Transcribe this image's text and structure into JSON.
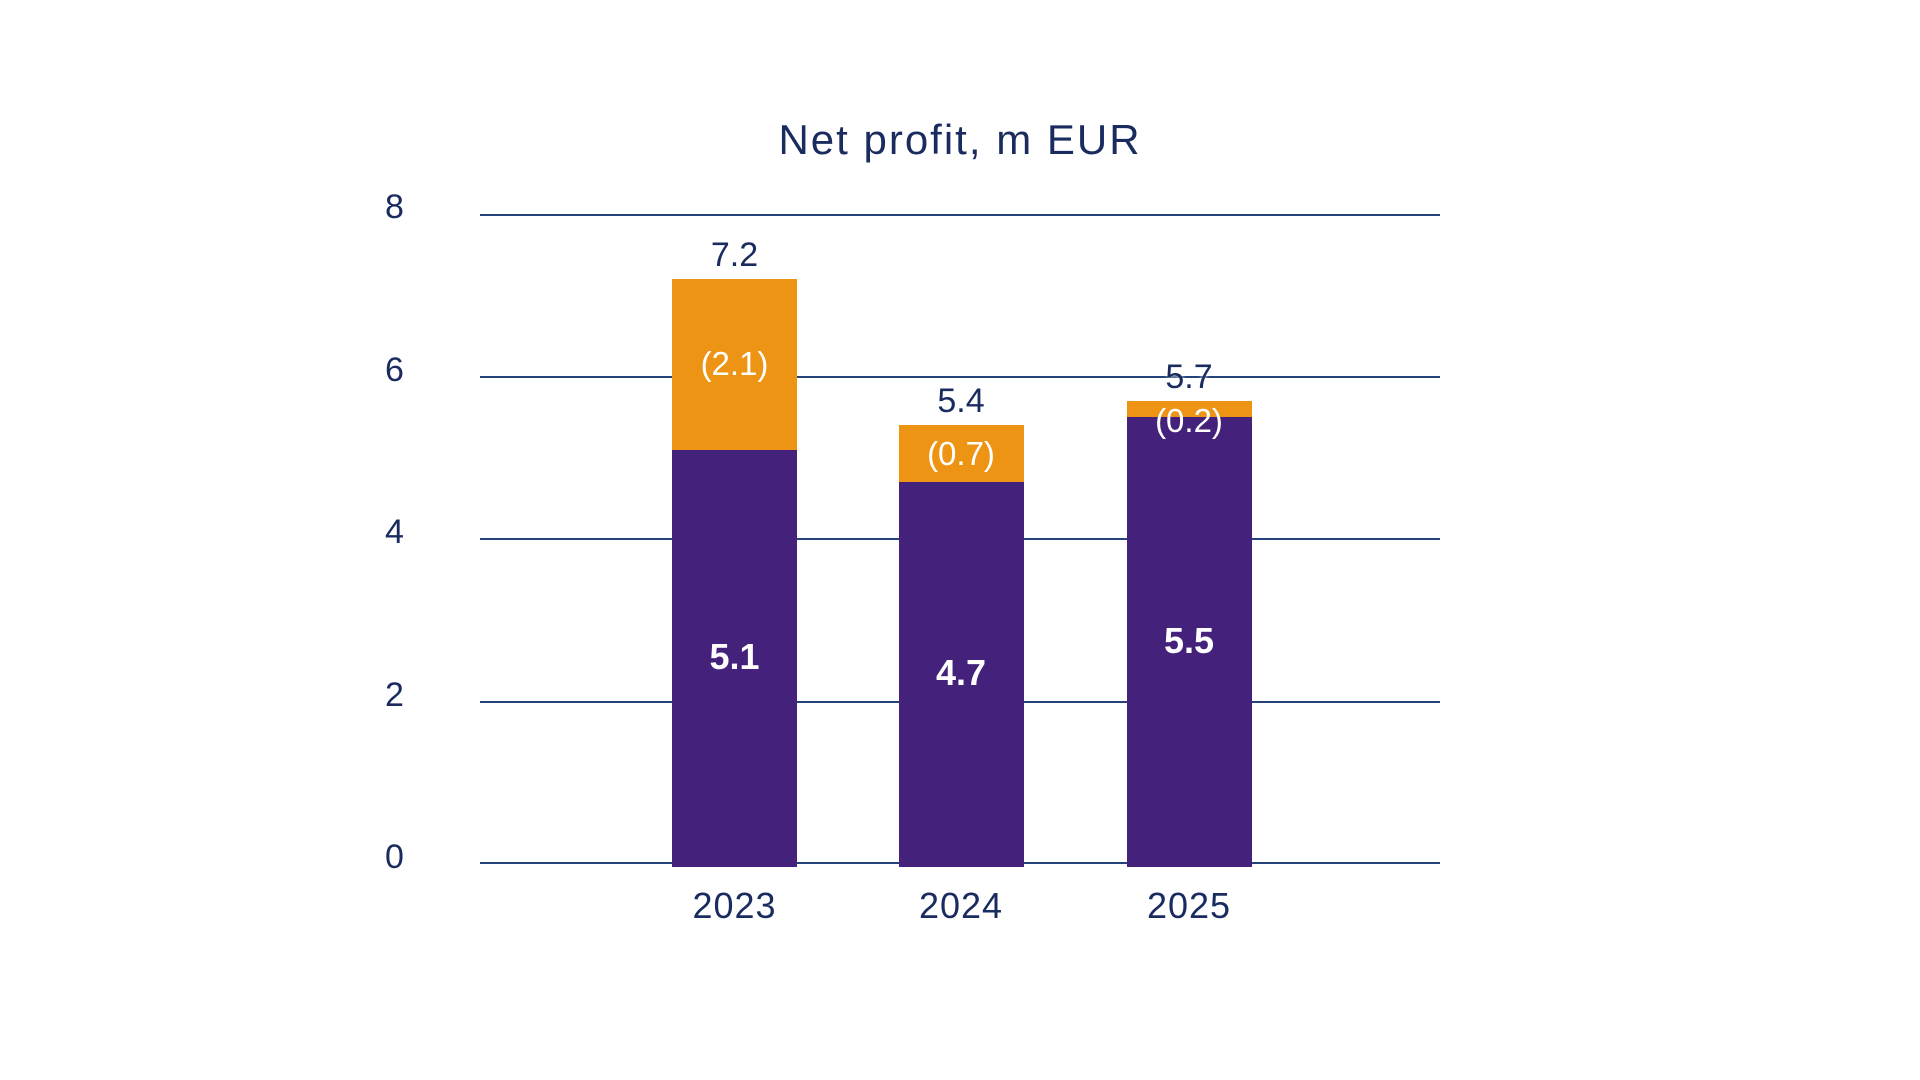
{
  "chart_data": {
    "type": "bar",
    "stacked": true,
    "title": "Net profit, m EUR",
    "categories": [
      "2023",
      "2024",
      "2025"
    ],
    "series": [
      {
        "name": "purple-segment",
        "color": "#44217B",
        "values": [
          5.1,
          4.7,
          5.5
        ],
        "labels": [
          "5.1",
          "4.7",
          "5.5"
        ],
        "label_bold": true
      },
      {
        "name": "orange-segment",
        "color": "#EE9414",
        "values": [
          2.1,
          0.7,
          0.2
        ],
        "labels": [
          "(2.1)",
          "(0.7)",
          "(0.2)"
        ],
        "label_bold": false
      }
    ],
    "totals": [
      7.2,
      5.4,
      5.7
    ],
    "total_labels": [
      "7.2",
      "5.4",
      "5.7"
    ],
    "yticks": [
      "0",
      "2",
      "4",
      "6",
      "8"
    ],
    "ylim": [
      0,
      8
    ],
    "grid": true,
    "legend": "none",
    "colors": {
      "title": "#1A2C5F",
      "axis_text": "#1A2C5F",
      "gridline": "#23437A",
      "value_label": "#1A2C5F",
      "inside_label": "#ffffff"
    }
  }
}
